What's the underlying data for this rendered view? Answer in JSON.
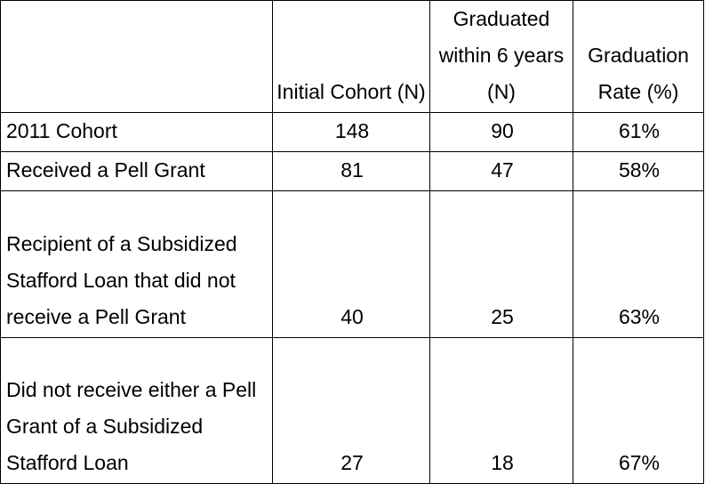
{
  "table": {
    "headers": [
      "",
      "Initial Cohort (N)",
      "Graduated within 6 years (N)",
      "Graduation Rate (%)"
    ],
    "rows": [
      {
        "label": "2011 Cohort",
        "initial": "148",
        "graduated": "90",
        "rate": "61%"
      },
      {
        "label": "Received a Pell Grant",
        "initial": "81",
        "graduated": "47",
        "rate": "58%"
      },
      {
        "label": "Recipient of a Subsidized Stafford Loan that did not receive a Pell Grant",
        "initial": "40",
        "graduated": "25",
        "rate": "63%"
      },
      {
        "label": "Did not receive either a Pell Grant of a Subsidized Stafford Loan",
        "initial": "27",
        "graduated": "18",
        "rate": "67%"
      }
    ]
  }
}
